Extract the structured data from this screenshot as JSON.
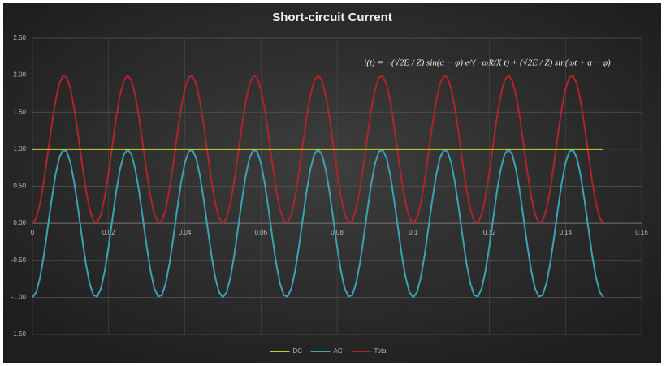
{
  "chart_data": {
    "type": "line",
    "title": "Short-circuit Current",
    "annotation": "i(t) = −(√2E / Z) sin(α − φ) e^(−ωR/X t) + (√2E / Z) sin(ωt + α − φ)",
    "x": [
      0,
      0.001,
      0.002,
      0.003,
      0.004,
      0.005,
      0.006,
      0.007,
      0.008,
      0.009,
      0.01,
      0.011,
      0.012,
      0.013,
      0.014,
      0.015,
      0.016,
      0.017,
      0.018,
      0.019,
      0.02,
      0.021,
      0.022,
      0.023,
      0.024,
      0.025,
      0.026,
      0.027,
      0.028,
      0.029,
      0.03,
      0.031,
      0.032,
      0.033,
      0.034,
      0.035,
      0.036,
      0.037,
      0.038,
      0.039,
      0.04,
      0.041,
      0.042,
      0.043,
      0.044,
      0.045,
      0.046,
      0.047,
      0.048,
      0.049,
      0.05,
      0.051,
      0.052,
      0.053,
      0.054,
      0.055,
      0.056,
      0.057,
      0.058,
      0.059,
      0.06,
      0.061,
      0.062,
      0.063,
      0.064,
      0.065,
      0.066,
      0.067,
      0.068,
      0.069,
      0.07,
      0.071,
      0.072,
      0.073,
      0.074,
      0.075,
      0.076,
      0.077,
      0.078,
      0.079,
      0.08,
      0.081,
      0.082,
      0.083,
      0.084,
      0.085,
      0.086,
      0.087,
      0.088,
      0.089,
      0.09,
      0.091,
      0.092,
      0.093,
      0.094,
      0.095,
      0.096,
      0.097,
      0.098,
      0.099,
      0.1,
      0.101,
      0.102,
      0.103,
      0.104,
      0.105,
      0.106,
      0.107,
      0.108,
      0.109,
      0.11,
      0.111,
      0.112,
      0.113,
      0.114,
      0.115,
      0.116,
      0.117,
      0.118,
      0.119,
      0.12,
      0.121,
      0.122,
      0.123,
      0.124,
      0.125,
      0.126,
      0.127,
      0.128,
      0.129,
      0.13,
      0.131,
      0.132,
      0.133,
      0.134,
      0.135,
      0.136,
      0.137,
      0.138,
      0.139,
      0.14,
      0.141,
      0.142,
      0.143,
      0.144,
      0.145,
      0.146,
      0.147,
      0.148,
      0.149,
      0.15
    ],
    "series": [
      {
        "name": "DC",
        "color": "#c5d02c",
        "values": [
          1,
          1,
          1,
          1,
          1,
          1,
          1,
          1,
          1,
          1,
          1,
          1,
          1,
          1,
          1,
          1,
          1,
          1,
          1,
          1,
          1,
          1,
          1,
          1,
          1,
          1,
          1,
          1,
          1,
          1,
          1,
          1,
          1,
          1,
          1,
          1,
          1,
          1,
          1,
          1,
          1,
          1,
          1,
          1,
          1,
          1,
          1,
          1,
          1,
          1,
          1,
          1,
          1,
          1,
          1,
          1,
          1,
          1,
          1,
          1,
          1,
          1,
          1,
          1,
          1,
          1,
          1,
          1,
          1,
          1,
          1,
          1,
          1,
          1,
          1,
          1,
          1,
          1,
          1,
          1,
          1,
          1,
          1,
          1,
          1,
          1,
          1,
          1,
          1,
          1,
          1,
          1,
          1,
          1,
          1,
          1,
          1,
          1,
          1,
          1,
          1,
          1,
          1,
          1,
          1,
          1,
          1,
          1,
          1,
          1,
          1,
          1,
          1,
          1,
          1,
          1,
          1,
          1,
          1,
          1,
          1,
          1,
          1,
          1,
          1,
          1,
          1,
          1,
          1,
          1,
          1,
          1,
          1,
          1,
          1,
          1,
          1,
          1,
          1,
          1,
          1,
          1,
          1,
          1,
          1,
          1,
          1,
          1,
          1,
          1,
          1
        ]
      },
      {
        "name": "AC",
        "color": "#3aa3b5",
        "values": [
          -1,
          -0.93,
          -0.73,
          -0.43,
          -0.06,
          0.31,
          0.64,
          0.88,
          0.99,
          0.97,
          0.81,
          0.54,
          0.19,
          -0.19,
          -0.54,
          -0.81,
          -0.97,
          -0.99,
          -0.88,
          -0.64,
          -0.31,
          0.06,
          0.43,
          0.73,
          0.93,
          1,
          0.93,
          0.73,
          0.43,
          0.06,
          -0.31,
          -0.64,
          -0.88,
          -0.99,
          -0.97,
          -0.81,
          -0.54,
          -0.19,
          0.19,
          0.54,
          0.81,
          0.97,
          0.99,
          0.88,
          0.64,
          0.31,
          -0.06,
          -0.43,
          -0.73,
          -0.93,
          -1,
          -0.93,
          -0.73,
          -0.43,
          -0.06,
          0.31,
          0.64,
          0.88,
          0.99,
          0.97,
          0.81,
          0.54,
          0.19,
          -0.19,
          -0.54,
          -0.81,
          -0.97,
          -0.99,
          -0.88,
          -0.64,
          -0.31,
          0.06,
          0.43,
          0.73,
          0.93,
          1,
          0.93,
          0.73,
          0.43,
          0.06,
          -0.31,
          -0.64,
          -0.88,
          -0.99,
          -0.97,
          -0.81,
          -0.54,
          -0.19,
          0.19,
          0.54,
          0.81,
          0.97,
          0.99,
          0.88,
          0.64,
          0.31,
          -0.06,
          -0.43,
          -0.73,
          -0.93,
          -1,
          -0.93,
          -0.73,
          -0.43,
          -0.06,
          0.31,
          0.64,
          0.88,
          0.99,
          0.97,
          0.81,
          0.54,
          0.19,
          -0.19,
          -0.54,
          -0.81,
          -0.97,
          -0.99,
          -0.88,
          -0.64,
          -0.31,
          0.06,
          0.43,
          0.73,
          0.93,
          1,
          0.93,
          0.73,
          0.43,
          0.06,
          -0.31,
          -0.64,
          -0.88,
          -0.99,
          -0.97,
          -0.81,
          -0.54,
          -0.19,
          0.19,
          0.54,
          0.81,
          0.97,
          0.99,
          0.88,
          0.64,
          0.31,
          -0.06,
          -0.43,
          -0.73,
          -0.93,
          -1
        ]
      },
      {
        "name": "Total",
        "color": "#b0242c",
        "values": [
          0,
          0.07,
          0.27,
          0.57,
          0.94,
          1.31,
          1.64,
          1.88,
          1.99,
          1.97,
          1.81,
          1.54,
          1.19,
          0.81,
          0.46,
          0.19,
          0.03,
          0.01,
          0.12,
          0.36,
          0.69,
          1.06,
          1.43,
          1.73,
          1.93,
          2,
          1.93,
          1.73,
          1.43,
          1.06,
          0.69,
          0.36,
          0.12,
          0.01,
          0.03,
          0.19,
          0.46,
          0.81,
          1.19,
          1.54,
          1.81,
          1.97,
          1.99,
          1.88,
          1.64,
          1.31,
          0.94,
          0.57,
          0.27,
          0.07,
          0,
          0.07,
          0.27,
          0.57,
          0.94,
          1.31,
          1.64,
          1.88,
          1.99,
          1.97,
          1.81,
          1.54,
          1.19,
          0.81,
          0.46,
          0.19,
          0.03,
          0.01,
          0.12,
          0.36,
          0.69,
          1.06,
          1.43,
          1.73,
          1.93,
          2,
          1.93,
          1.73,
          1.43,
          1.06,
          0.69,
          0.36,
          0.12,
          0.01,
          0.03,
          0.19,
          0.46,
          0.81,
          1.19,
          1.54,
          1.81,
          1.97,
          1.99,
          1.88,
          1.64,
          1.31,
          0.94,
          0.57,
          0.27,
          0.07,
          0,
          0.07,
          0.27,
          0.57,
          0.94,
          1.31,
          1.64,
          1.88,
          1.99,
          1.97,
          1.81,
          1.54,
          1.19,
          0.81,
          0.46,
          0.19,
          0.03,
          0.01,
          0.12,
          0.36,
          0.69,
          1.06,
          1.43,
          1.73,
          1.93,
          2,
          1.93,
          1.73,
          1.43,
          1.06,
          0.69,
          0.36,
          0.12,
          0.01,
          0.03,
          0.19,
          0.46,
          0.81,
          1.19,
          1.54,
          1.81,
          1.97,
          1.99,
          1.88,
          1.64,
          1.31,
          0.94,
          0.57,
          0.27,
          0.07,
          0
        ]
      }
    ],
    "xlim": [
      0,
      0.16
    ],
    "xticks": [
      0,
      0.02,
      0.04,
      0.06,
      0.08,
      0.1,
      0.12,
      0.14,
      0.16
    ],
    "ylim": [
      -1.5,
      2.5
    ],
    "yticks": [
      {
        "value": 2.5,
        "label": "2.50"
      },
      {
        "value": 2,
        "label": "2.00"
      },
      {
        "value": 1.5,
        "label": "1.50"
      },
      {
        "value": 1,
        "label": "1.00"
      },
      {
        "value": 0.5,
        "label": "0.50"
      },
      {
        "value": 0,
        "label": "0.00"
      },
      {
        "value": -0.5,
        "label": "-0.50"
      },
      {
        "value": -1,
        "label": "-1.00"
      },
      {
        "value": -1.5,
        "label": "-1.50"
      }
    ],
    "grid": true,
    "legend": "bottom"
  }
}
